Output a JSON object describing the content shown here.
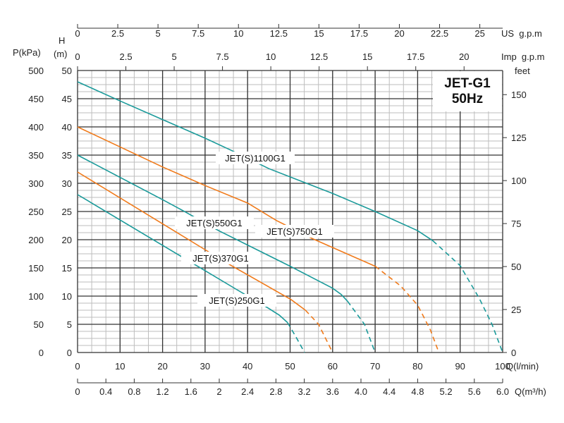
{
  "chart_data": {
    "type": "line",
    "title": "JET-G1",
    "subtitle": "50Hz",
    "xlabel": "Q(l/min)",
    "xlim": [
      0,
      100
    ],
    "x_ticks": [
      0,
      10,
      20,
      30,
      40,
      50,
      60,
      70,
      80,
      90,
      100
    ],
    "ylabel": "H\n(m)",
    "ylabel_h": "H",
    "ylabel_m": "(m)",
    "ylim": [
      0,
      50
    ],
    "y_ticks": [
      0,
      5,
      10,
      15,
      20,
      25,
      30,
      35,
      40,
      45,
      50
    ],
    "left_axis": {
      "label": "P(kPa)",
      "ticks": [
        0,
        50,
        100,
        150,
        200,
        250,
        300,
        350,
        400,
        450,
        500
      ]
    },
    "right_axis": {
      "label": "feet",
      "ticks": [
        0,
        25,
        50,
        75,
        100,
        125,
        150
      ]
    },
    "top_axis_us": {
      "label": "US  g.p.m",
      "ticks": [
        0,
        2.5,
        5,
        7.5,
        10,
        12.5,
        15,
        17.5,
        20,
        22.5,
        25
      ]
    },
    "top_axis_imp": {
      "label": "Imp  g.p.m",
      "ticks": [
        0,
        2.5,
        5,
        7.5,
        10,
        12.5,
        15,
        17.5,
        20
      ]
    },
    "bottom_axis_m3h": {
      "label": "Q(m³/h)",
      "ticks": [
        "0",
        "0.4",
        "0.8",
        "1.2",
        "1.6",
        "2",
        "2.4",
        "2.8",
        "3.2",
        "3.6",
        "4.0",
        "4.4",
        "4.8",
        "5.2",
        "5.6",
        "6.0"
      ]
    },
    "grid": true,
    "colors": {
      "teal": "#1a9a9a",
      "orange": "#f07a1a",
      "grid_major": "#333333",
      "grid_minor": "#bdbdbd"
    },
    "series": [
      {
        "name": "JET(S)1100G1",
        "color": "#1a9a9a",
        "solid": [
          [
            0,
            48
          ],
          [
            10,
            44.6
          ],
          [
            20,
            41.3
          ],
          [
            30,
            38
          ],
          [
            36,
            35.9
          ],
          [
            45,
            32.6
          ],
          [
            60,
            28.2
          ],
          [
            70,
            25
          ],
          [
            80,
            21.6
          ],
          [
            83.6,
            19.8
          ]
        ],
        "dashed": [
          [
            83.6,
            19.8
          ],
          [
            90,
            15.4
          ],
          [
            94.5,
            9.6
          ],
          [
            97.5,
            5
          ],
          [
            100,
            0
          ]
        ]
      },
      {
        "name": "JET(S)750G1",
        "color": "#f07a1a",
        "solid": [
          [
            0,
            40
          ],
          [
            20,
            32.9
          ],
          [
            30,
            29.6
          ],
          [
            40,
            26.5
          ],
          [
            46.8,
            23.4
          ],
          [
            55.2,
            20.2
          ],
          [
            70,
            15.3
          ]
        ],
        "dashed": [
          [
            70,
            15.3
          ],
          [
            76,
            11.8
          ],
          [
            80,
            8.4
          ],
          [
            83,
            4
          ],
          [
            85,
            0
          ]
        ]
      },
      {
        "name": "JET(S)550G1",
        "color": "#1a9a9a",
        "solid": [
          [
            0,
            35
          ],
          [
            20,
            27.1
          ],
          [
            25.4,
            24.9
          ],
          [
            33.2,
            21.6
          ],
          [
            50,
            15.3
          ],
          [
            60,
            11.4
          ],
          [
            62,
            10.3
          ],
          [
            63.5,
            9.1
          ]
        ],
        "dashed": [
          [
            63.5,
            9.1
          ],
          [
            67.5,
            5
          ],
          [
            70,
            0
          ]
        ]
      },
      {
        "name": "JET(S)370G1",
        "color": "#f07a1a",
        "solid": [
          [
            0,
            32
          ],
          [
            29.4,
            18.5
          ],
          [
            36.2,
            15.4
          ],
          [
            50.2,
            9.4
          ],
          [
            53.6,
            7.5
          ]
        ],
        "dashed": [
          [
            53.6,
            7.5
          ],
          [
            56.7,
            5
          ],
          [
            60,
            0
          ]
        ]
      },
      {
        "name": "JET(S)250G1",
        "color": "#1a9a9a",
        "solid": [
          [
            0,
            28
          ],
          [
            37.8,
            11
          ],
          [
            44.8,
            7.9
          ],
          [
            47.5,
            6.6
          ],
          [
            49.4,
            5.3
          ]
        ],
        "dashed": [
          [
            49.4,
            5.3
          ],
          [
            51.5,
            2.6
          ],
          [
            53.4,
            0
          ]
        ]
      }
    ]
  }
}
